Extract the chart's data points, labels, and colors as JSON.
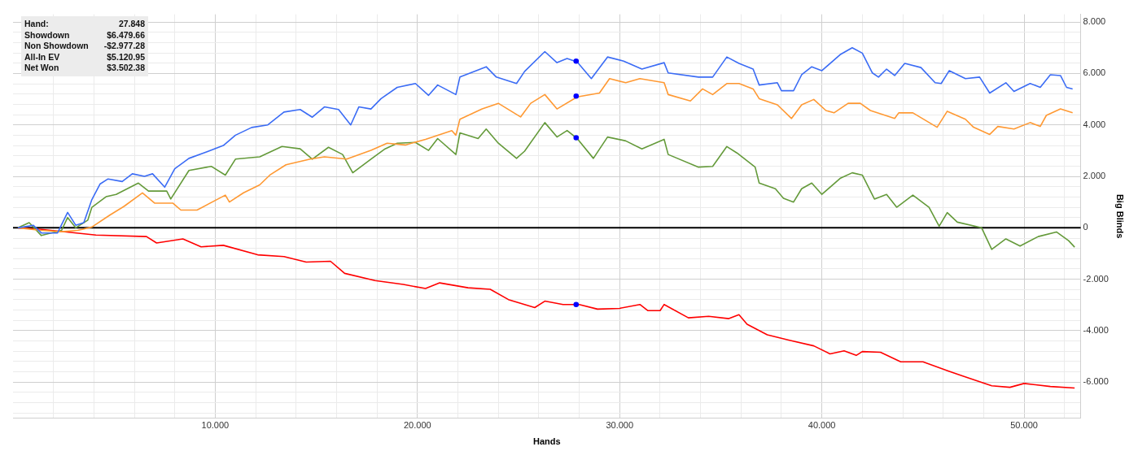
{
  "chart_data": {
    "type": "line",
    "xlabel": "Hands",
    "ylabel": "Big Blinds",
    "xlim": [
      0,
      52800
    ],
    "ylim": [
      -7400,
      8300
    ],
    "xticks": [
      {
        "value": 2000,
        "label": null
      },
      {
        "value": 4000,
        "label": null
      },
      {
        "value": 6000,
        "label": null
      },
      {
        "value": 8000,
        "label": null
      },
      {
        "value": 10000,
        "label": "10.000"
      },
      {
        "value": 12000,
        "label": null
      },
      {
        "value": 14000,
        "label": null
      },
      {
        "value": 16000,
        "label": null
      },
      {
        "value": 18000,
        "label": null
      },
      {
        "value": 20000,
        "label": "20.000"
      },
      {
        "value": 22000,
        "label": null
      },
      {
        "value": 24000,
        "label": null
      },
      {
        "value": 26000,
        "label": null
      },
      {
        "value": 28000,
        "label": null
      },
      {
        "value": 30000,
        "label": "30.000"
      },
      {
        "value": 32000,
        "label": null
      },
      {
        "value": 34000,
        "label": null
      },
      {
        "value": 36000,
        "label": null
      },
      {
        "value": 38000,
        "label": null
      },
      {
        "value": 40000,
        "label": "40.000"
      },
      {
        "value": 42000,
        "label": null
      },
      {
        "value": 44000,
        "label": null
      },
      {
        "value": 46000,
        "label": null
      },
      {
        "value": 48000,
        "label": null
      },
      {
        "value": 50000,
        "label": "50.000"
      },
      {
        "value": 52000,
        "label": null
      }
    ],
    "yticks": [
      {
        "value": -7200,
        "label": null
      },
      {
        "value": -6800,
        "label": null
      },
      {
        "value": -6400,
        "label": null
      },
      {
        "value": -6000,
        "label": "-6.000"
      },
      {
        "value": -5600,
        "label": null
      },
      {
        "value": -5200,
        "label": null
      },
      {
        "value": -4800,
        "label": null
      },
      {
        "value": -4400,
        "label": null
      },
      {
        "value": -4000,
        "label": "-4.000"
      },
      {
        "value": -3600,
        "label": null
      },
      {
        "value": -3200,
        "label": null
      },
      {
        "value": -2800,
        "label": null
      },
      {
        "value": -2400,
        "label": null
      },
      {
        "value": -2000,
        "label": "-2.000"
      },
      {
        "value": -1600,
        "label": null
      },
      {
        "value": -1200,
        "label": null
      },
      {
        "value": -800,
        "label": null
      },
      {
        "value": -400,
        "label": null
      },
      0,
      {
        "value": 400,
        "label": null
      },
      {
        "value": 800,
        "label": null
      },
      {
        "value": 1200,
        "label": null
      },
      {
        "value": 1600,
        "label": null
      },
      {
        "value": 2000,
        "label": "2.000"
      },
      {
        "value": 2400,
        "label": null
      },
      {
        "value": 2800,
        "label": null
      },
      {
        "value": 3200,
        "label": null
      },
      {
        "value": 3600,
        "label": null
      },
      {
        "value": 4000,
        "label": "4.000"
      },
      {
        "value": 4400,
        "label": null
      },
      {
        "value": 4800,
        "label": null
      },
      {
        "value": 5200,
        "label": null
      },
      {
        "value": 5600,
        "label": null
      },
      {
        "value": 6000,
        "label": "6.000"
      },
      {
        "value": 6400,
        "label": null
      },
      {
        "value": 6800,
        "label": null
      },
      {
        "value": 7200,
        "label": null
      },
      {
        "value": 7600,
        "label": null
      },
      {
        "value": 8000,
        "label": "8.000"
      }
    ],
    "grid": true,
    "legend": false,
    "marker": "none",
    "line_style": "solid",
    "ref_lines": [
      {
        "axis": "y",
        "value": 0,
        "color": "#000000"
      }
    ],
    "annotations": [
      "Hand:",
      "27.848",
      "Showdown",
      "$6.479.66",
      "Non Showdown",
      "-$2.977.28",
      "All-In EV",
      "$5.120.95",
      "Net Won",
      "$3.502.38"
    ],
    "series": [
      {
        "color": "#3b6cf5",
        "x": [
          240,
          1000,
          1400,
          2200,
          2700,
          3100,
          3500,
          3900,
          4300,
          4700,
          5400,
          5900,
          6500,
          6900,
          7500,
          8000,
          8700,
          9400,
          10400,
          11000,
          11800,
          12600,
          13400,
          14200,
          14800,
          15400,
          16100,
          16700,
          17100,
          17700,
          18200,
          19000,
          19900,
          20550,
          21000,
          21900,
          22100,
          23400,
          23900,
          24900,
          25300,
          26300,
          26900,
          27400,
          27900,
          28600,
          29400,
          30200,
          31100,
          32200,
          32400,
          33900,
          34600,
          35300,
          35900,
          36600,
          36900,
          37800,
          38000,
          38600,
          39000,
          39500,
          40000,
          40900,
          41500,
          42000,
          42500,
          42800,
          43200,
          43600,
          44100,
          44900,
          45600,
          45900,
          46300,
          47100,
          47800,
          48300,
          49100,
          49500,
          50300,
          50800,
          51300,
          51800,
          52100,
          52400
        ],
        "values": [
          0,
          100,
          -200,
          -200,
          600,
          100,
          200,
          1100,
          1700,
          1900,
          1800,
          2100,
          2000,
          2100,
          1580,
          2300,
          2700,
          2900,
          3200,
          3600,
          3900,
          4000,
          4500,
          4600,
          4300,
          4700,
          4600,
          4000,
          4700,
          4620,
          5020,
          5460,
          5610,
          5150,
          5550,
          5180,
          5860,
          6260,
          5860,
          5610,
          6080,
          6850,
          6420,
          6580,
          6450,
          5800,
          6640,
          6480,
          6170,
          6420,
          6020,
          5860,
          5860,
          6640,
          6390,
          6170,
          5550,
          5640,
          5330,
          5330,
          5950,
          6260,
          6110,
          6730,
          7000,
          6790,
          6020,
          5860,
          6170,
          5920,
          6390,
          6230,
          5640,
          5610,
          6110,
          5800,
          5860,
          5240,
          5640,
          5300,
          5610,
          5460,
          5950,
          5920,
          5460,
          5400
        ]
      },
      {
        "color": "#ff9933",
        "x": [
          240,
          1400,
          2400,
          3200,
          3900,
          4800,
          5500,
          6400,
          7000,
          7900,
          8300,
          9100,
          10500,
          10700,
          11400,
          12200,
          12700,
          13500,
          14700,
          15400,
          16500,
          17700,
          18500,
          19400,
          20400,
          21700,
          21900,
          22100,
          23200,
          24000,
          25100,
          25600,
          26300,
          26900,
          27900,
          29000,
          29500,
          30300,
          31000,
          32200,
          32400,
          33500,
          34100,
          34600,
          35300,
          35900,
          36600,
          36900,
          37800,
          38500,
          39000,
          39600,
          40200,
          40600,
          41300,
          41900,
          42400,
          43600,
          43800,
          44500,
          45700,
          46200,
          47100,
          47500,
          48300,
          48700,
          49500,
          50300,
          50800,
          51100,
          51800,
          52400
        ],
        "values": [
          0,
          -100,
          -150,
          -100,
          30,
          500,
          840,
          1360,
          960,
          960,
          690,
          690,
          1270,
          1000,
          1360,
          1670,
          2050,
          2450,
          2670,
          2760,
          2670,
          3010,
          3290,
          3220,
          3440,
          3780,
          3600,
          4220,
          4620,
          4840,
          4310,
          4840,
          5180,
          4620,
          5090,
          5240,
          5800,
          5640,
          5800,
          5640,
          5180,
          4930,
          5400,
          5180,
          5610,
          5610,
          5400,
          5020,
          4780,
          4250,
          4780,
          4990,
          4560,
          4470,
          4840,
          4840,
          4560,
          4250,
          4470,
          4470,
          3910,
          4530,
          4220,
          3910,
          3630,
          3940,
          3840,
          4090,
          3940,
          4370,
          4620,
          4470
        ]
      },
      {
        "color": "#649a3a",
        "x": [
          240,
          800,
          1400,
          2400,
          2700,
          3100,
          3700,
          3900,
          4600,
          5100,
          6200,
          6700,
          7600,
          7800,
          8700,
          9800,
          10500,
          11000,
          12200,
          13300,
          14200,
          14800,
          15600,
          16300,
          16800,
          17700,
          18400,
          19000,
          19900,
          20550,
          21000,
          21900,
          22100,
          23000,
          23400,
          24000,
          24900,
          25300,
          26300,
          26900,
          27400,
          27900,
          28700,
          29400,
          30300,
          31100,
          32200,
          32400,
          33900,
          34600,
          35300,
          35800,
          36700,
          36900,
          37700,
          38100,
          38600,
          39000,
          39500,
          40000,
          40900,
          41500,
          42000,
          42600,
          43200,
          43700,
          44500,
          45300,
          45800,
          46200,
          46700,
          47900,
          48400,
          49100,
          49800,
          50700,
          51600,
          52200,
          52500
        ],
        "values": [
          0,
          200,
          -300,
          -100,
          400,
          0,
          300,
          800,
          1210,
          1300,
          1740,
          1430,
          1430,
          1120,
          2230,
          2390,
          2050,
          2670,
          2760,
          3160,
          3070,
          2670,
          3130,
          2850,
          2140,
          2670,
          3070,
          3290,
          3320,
          3010,
          3470,
          2850,
          3690,
          3470,
          3840,
          3290,
          2700,
          2980,
          4090,
          3530,
          3780,
          3470,
          2700,
          3530,
          3380,
          3070,
          3440,
          2850,
          2360,
          2390,
          3160,
          2910,
          2360,
          1740,
          1520,
          1150,
          1000,
          1520,
          1740,
          1300,
          1920,
          2140,
          2050,
          1120,
          1300,
          800,
          1270,
          800,
          60,
          590,
          220,
          0,
          -840,
          -430,
          -710,
          -340,
          -160,
          -500,
          -750
        ]
      },
      {
        "color": "#ff0000",
        "x": [
          240,
          1400,
          4100,
          6600,
          7100,
          8400,
          9300,
          10400,
          12100,
          13400,
          14500,
          15700,
          16400,
          17900,
          19300,
          20400,
          21100,
          22500,
          23600,
          24500,
          25800,
          26300,
          27200,
          28000,
          28900,
          30000,
          31000,
          31400,
          32000,
          32200,
          33400,
          34400,
          35400,
          35900,
          36300,
          37300,
          38400,
          39600,
          40400,
          41100,
          41700,
          42000,
          42900,
          43900,
          45000,
          46300,
          47000,
          48400,
          49300,
          50000,
          51300,
          52500
        ],
        "values": [
          0,
          -60,
          -280,
          -340,
          -590,
          -430,
          -740,
          -680,
          -1050,
          -1120,
          -1330,
          -1300,
          -1770,
          -2050,
          -2200,
          -2360,
          -2140,
          -2330,
          -2390,
          -2790,
          -3100,
          -2850,
          -2980,
          -2980,
          -3160,
          -3130,
          -2980,
          -3220,
          -3220,
          -2980,
          -3500,
          -3440,
          -3530,
          -3380,
          -3750,
          -4160,
          -4370,
          -4590,
          -4900,
          -4780,
          -4960,
          -4810,
          -4840,
          -5210,
          -5210,
          -5580,
          -5770,
          -6140,
          -6200,
          -6050,
          -6170,
          -6230
        ]
      },
      {
        "type": "scatter",
        "marker": "circle",
        "color": "#0000ff",
        "x": [
          27848,
          27848,
          27848,
          27848
        ],
        "values": [
          6480,
          5120,
          3500,
          -2980
        ]
      }
    ]
  }
}
